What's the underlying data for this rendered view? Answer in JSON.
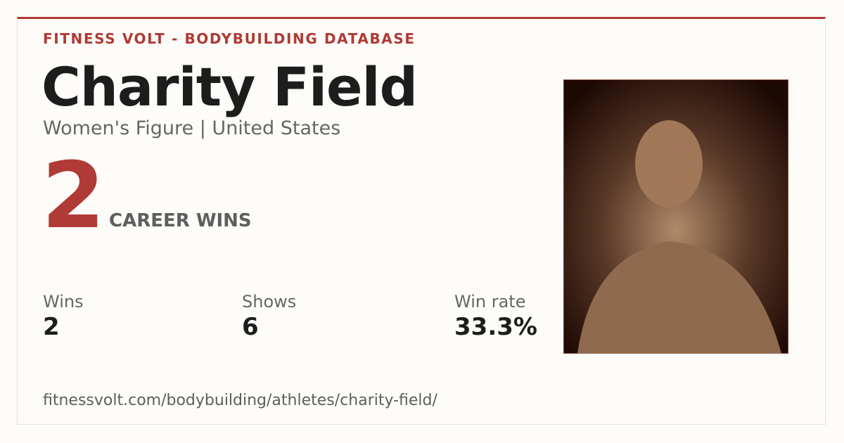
{
  "header": "FITNESS VOLT - BODYBUILDING DATABASE",
  "name": "Charity Field",
  "subtitle": "Women's Figure | United States",
  "hero": {
    "value": 2,
    "label": "CAREER WINS"
  },
  "stats": [
    {
      "label": "Wins",
      "value": 2
    },
    {
      "label": "Shows",
      "value": 6
    },
    {
      "label": "Win rate",
      "value": "33.3%"
    }
  ],
  "url": "fitnessvolt.com/bodybuilding/athletes/charity-field/"
}
